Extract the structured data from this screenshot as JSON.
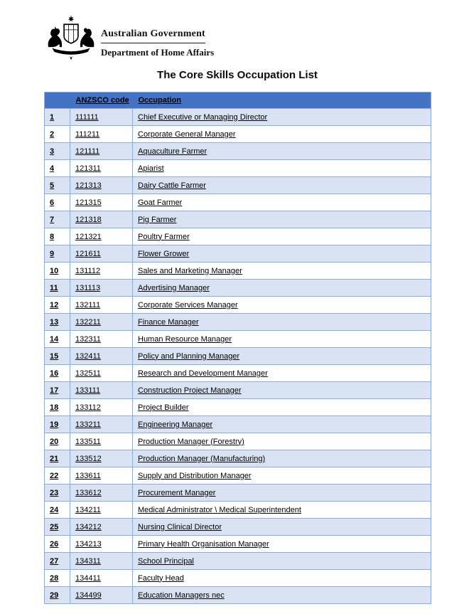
{
  "header": {
    "coat_of_arms_icon": "australian-coat-of-arms",
    "agency": "Australian Government",
    "department": "Department of Home Affairs"
  },
  "title": "The Core Skills Occupation List",
  "colors": {
    "table_header_bg": "#4472C4",
    "table_header_text": "#FFFFFF",
    "row_stripe_bg": "#D9E2F3",
    "row_plain_bg": "#FFFFFF",
    "table_border": "#8EAADB",
    "text": "#000000"
  },
  "table": {
    "columns": [
      "",
      "ANZSCO code",
      "Occupation"
    ],
    "rows": [
      {
        "num": "1",
        "code": "111111",
        "occupation": "Chief Executive or Managing Director"
      },
      {
        "num": "2",
        "code": "111211",
        "occupation": "Corporate General Manager"
      },
      {
        "num": "3",
        "code": "121111",
        "occupation": "Aquaculture Farmer"
      },
      {
        "num": "4",
        "code": "121311",
        "occupation": "Apiarist"
      },
      {
        "num": "5",
        "code": "121313",
        "occupation": "Dairy Cattle Farmer"
      },
      {
        "num": "6",
        "code": "121315",
        "occupation": "Goat Farmer"
      },
      {
        "num": "7",
        "code": "121318",
        "occupation": "Pig Farmer"
      },
      {
        "num": "8",
        "code": "121321",
        "occupation": "Poultry Farmer"
      },
      {
        "num": "9",
        "code": "121611",
        "occupation": "Flower Grower"
      },
      {
        "num": "10",
        "code": "131112",
        "occupation": "Sales and Marketing Manager"
      },
      {
        "num": "11",
        "code": "131113",
        "occupation": "Advertising Manager"
      },
      {
        "num": "12",
        "code": "132111",
        "occupation": "Corporate Services Manager"
      },
      {
        "num": "13",
        "code": "132211",
        "occupation": "Finance Manager"
      },
      {
        "num": "14",
        "code": "132311",
        "occupation": "Human Resource Manager"
      },
      {
        "num": "15",
        "code": "132411",
        "occupation": "Policy and Planning Manager"
      },
      {
        "num": "16",
        "code": "132511",
        "occupation": "Research and Development Manager"
      },
      {
        "num": "17",
        "code": "133111",
        "occupation": "Construction Project Manager"
      },
      {
        "num": "18",
        "code": "133112",
        "occupation": "Project Builder"
      },
      {
        "num": "19",
        "code": "133211",
        "occupation": "Engineering Manager"
      },
      {
        "num": "20",
        "code": "133511",
        "occupation": "Production Manager (Forestry)"
      },
      {
        "num": "21",
        "code": "133512",
        "occupation": "Production Manager (Manufacturing)"
      },
      {
        "num": "22",
        "code": "133611",
        "occupation": "Supply and Distribution Manager"
      },
      {
        "num": "23",
        "code": "133612",
        "occupation": "Procurement Manager"
      },
      {
        "num": "24",
        "code": "134211",
        "occupation": "Medical Administrator \\ Medical Superintendent"
      },
      {
        "num": "25",
        "code": "134212",
        "occupation": "Nursing Clinical Director"
      },
      {
        "num": "26",
        "code": "134213",
        "occupation": "Primary Health Organisation Manager"
      },
      {
        "num": "27",
        "code": "134311",
        "occupation": "School Principal"
      },
      {
        "num": "28",
        "code": "134411",
        "occupation": "Faculty Head"
      },
      {
        "num": "29",
        "code": "134499",
        "occupation": "Education Managers nec"
      }
    ]
  }
}
